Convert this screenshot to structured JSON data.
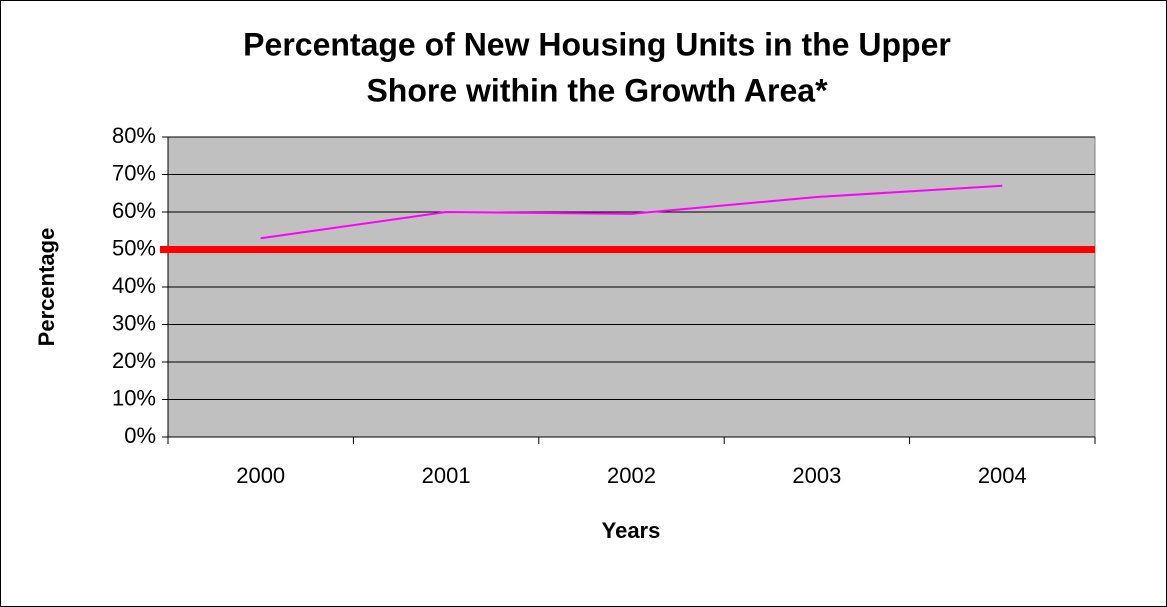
{
  "chart_data": {
    "type": "line",
    "title": [
      "Percentage of New Housing Units in the Upper",
      "Shore within the Growth Area*"
    ],
    "xlabel": "Years",
    "ylabel": "Percentage",
    "categories": [
      "2000",
      "2001",
      "2002",
      "2003",
      "2004"
    ],
    "series": [
      {
        "color": "#ff00ff",
        "values": [
          53,
          60,
          59.5,
          64,
          67
        ]
      }
    ],
    "reference_line": {
      "value": 50,
      "color": "#ff0000"
    },
    "ylim": [
      0,
      80
    ],
    "yticks": [
      {
        "value": 0,
        "label": "0%"
      },
      {
        "value": 10,
        "label": "10%"
      },
      {
        "value": 20,
        "label": "20%"
      },
      {
        "value": 30,
        "label": "30%"
      },
      {
        "value": 40,
        "label": "40%"
      },
      {
        "value": 50,
        "label": "50%"
      },
      {
        "value": 60,
        "label": "60%"
      },
      {
        "value": 70,
        "label": "70%"
      },
      {
        "value": 80,
        "label": "80%"
      }
    ],
    "grid": true,
    "plot_background": "#c0c0c0"
  }
}
